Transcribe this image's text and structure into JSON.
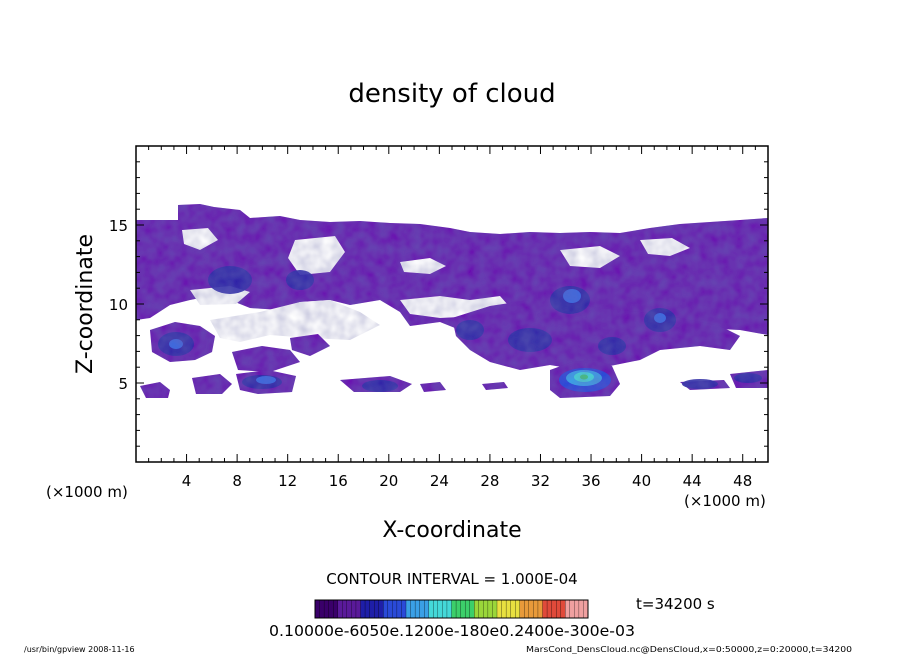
{
  "chart_data": {
    "type": "heatmap",
    "title": "density of cloud",
    "xlabel": "X-coordinate",
    "ylabel": "Z-coordinate",
    "x_unit_note_left": "(×1000 m)",
    "x_unit_note_right": "(×1000 m)",
    "xlim": [
      0,
      50
    ],
    "ylim": [
      0,
      20
    ],
    "x_ticks": [
      4,
      8,
      12,
      16,
      20,
      24,
      28,
      32,
      36,
      40,
      44,
      48
    ],
    "y_ticks": [
      5,
      10,
      15
    ],
    "time_label": "t=34200 s",
    "contour_interval_text": "CONTOUR INTERVAL = 1.000E-04",
    "colorbar_labels_text": "0.10000e-6050e.1200e-180e0.2400e-300e-03",
    "colorbar_colors": [
      "#3a006a",
      "#5a1a9a",
      "#1e1ea8",
      "#2a4ad8",
      "#3aa0e6",
      "#44d8d8",
      "#3ccf6a",
      "#9ad63a",
      "#e8e040",
      "#e89a3a",
      "#e04a3a",
      "#f0a0a0"
    ],
    "footer_left": "/usr/bin/gpview   2008-11-16",
    "footer_right": "MarsCond_DensCloud.nc@DensCloud,x=0:50000,z=0:20000,t=34200",
    "regions": [
      {
        "name": "upper-cloud-layer",
        "x": [
          0,
          50
        ],
        "z": [
          9.0,
          15.5
        ],
        "density_level": "low (~1e-4)"
      },
      {
        "name": "mid-cloud-band-left",
        "x": [
          0,
          16
        ],
        "z": [
          6.0,
          9.0
        ],
        "density_level": "low"
      },
      {
        "name": "cloud-cell-x34",
        "x": [
          32.5,
          38
        ],
        "z": [
          4.5,
          6.5
        ],
        "density_level": "high (~6e-4)"
      },
      {
        "name": "lower-cloud-strips",
        "x": [
          0,
          50
        ],
        "z": [
          4.0,
          5.5
        ],
        "density_level": "low to medium"
      }
    ]
  }
}
